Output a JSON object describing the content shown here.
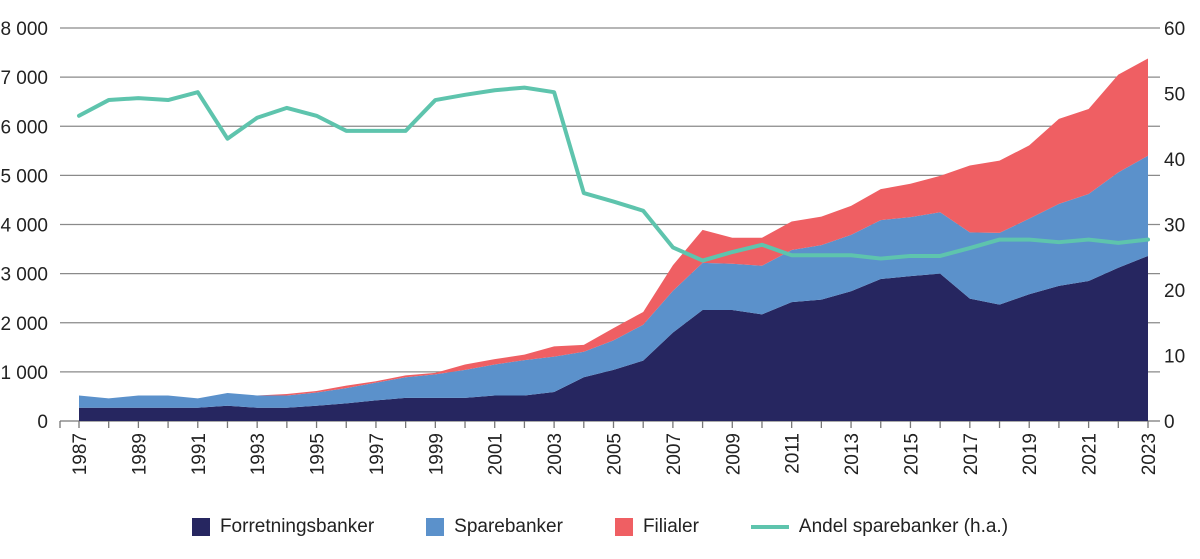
{
  "chart_data": {
    "type": "area",
    "stacked": true,
    "x": [
      1987,
      1988,
      1989,
      1990,
      1991,
      1992,
      1993,
      1994,
      1995,
      1996,
      1997,
      1998,
      1999,
      2000,
      2001,
      2002,
      2003,
      2004,
      2005,
      2006,
      2007,
      2008,
      2009,
      2010,
      2011,
      2012,
      2013,
      2014,
      2015,
      2016,
      2017,
      2018,
      2019,
      2020,
      2021,
      2022,
      2023
    ],
    "x_tick_labels": [
      "1987",
      "1989",
      "1991",
      "1993",
      "1995",
      "1997",
      "1999",
      "2001",
      "2003",
      "2005",
      "2007",
      "2009",
      "2011",
      "2013",
      "2015",
      "2017",
      "2019",
      "2021",
      "2023"
    ],
    "y_left": {
      "lim": [
        0,
        8000
      ],
      "ticks": [
        "0",
        "1 000",
        "2 000",
        "3 000",
        "4 000",
        "5 000",
        "6 000",
        "7 000",
        "8 000"
      ]
    },
    "y_right": {
      "lim": [
        0,
        60
      ],
      "ticks": [
        "0",
        "10",
        "20",
        "30",
        "40",
        "50",
        "60"
      ]
    },
    "grid": true,
    "legend_position": "bottom",
    "series": [
      {
        "name": "Forretningsbanker",
        "axis": "left",
        "kind": "area",
        "color": "#262660",
        "values": [
          270,
          270,
          270,
          270,
          270,
          310,
          270,
          270,
          310,
          360,
          420,
          470,
          470,
          470,
          520,
          520,
          590,
          890,
          1040,
          1230,
          1800,
          2260,
          2260,
          2170,
          2420,
          2470,
          2640,
          2890,
          2950,
          3000,
          2490,
          2370,
          2580,
          2750,
          2850,
          3120,
          3360
        ]
      },
      {
        "name": "Sparebanker",
        "axis": "left",
        "kind": "area",
        "color": "#5b91cb",
        "values": [
          250,
          190,
          250,
          250,
          190,
          260,
          250,
          250,
          270,
          310,
          360,
          420,
          480,
          570,
          630,
          720,
          720,
          520,
          600,
          730,
          850,
          960,
          940,
          990,
          1060,
          1110,
          1150,
          1200,
          1200,
          1250,
          1350,
          1460,
          1540,
          1670,
          1770,
          1940,
          2040
        ]
      },
      {
        "name": "Filialer",
        "axis": "left",
        "kind": "area",
        "color": "#ef5f63",
        "values": [
          0,
          0,
          0,
          0,
          0,
          0,
          0,
          30,
          30,
          50,
          30,
          40,
          30,
          110,
          110,
          110,
          210,
          140,
          250,
          260,
          520,
          670,
          530,
          570,
          580,
          580,
          590,
          630,
          680,
          740,
          1360,
          1470,
          1490,
          1730,
          1730,
          1990,
          1980
        ]
      },
      {
        "name": "Andel sparebanker (h.a.)",
        "axis": "right",
        "kind": "line",
        "color": "#5ec4ad",
        "values": [
          46.6,
          49.0,
          49.3,
          49.0,
          50.2,
          43.1,
          46.3,
          47.8,
          46.6,
          44.3,
          44.3,
          44.3,
          49.0,
          49.8,
          50.5,
          50.9,
          50.2,
          34.8,
          33.5,
          32.1,
          26.5,
          24.5,
          25.8,
          26.9,
          25.3,
          25.3,
          25.3,
          24.8,
          25.2,
          25.2,
          26.4,
          27.7,
          27.7,
          27.3,
          27.7,
          27.2,
          27.7
        ]
      }
    ]
  }
}
